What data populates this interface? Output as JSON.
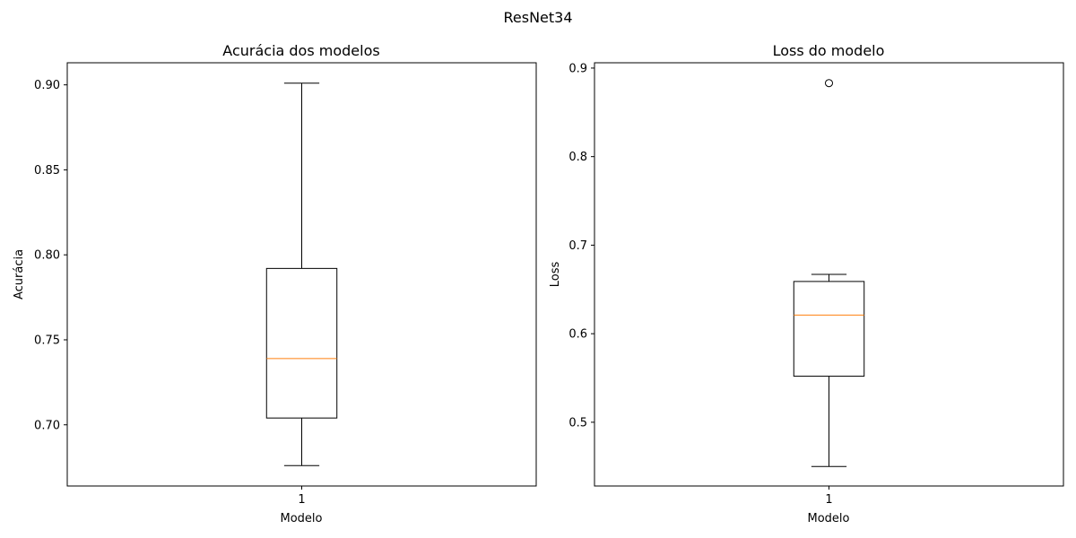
{
  "figure": {
    "suptitle": "ResNet34"
  },
  "chart_data": [
    {
      "type": "boxplot",
      "title": "Acurácia dos modelos",
      "xlabel": "Modelo",
      "ylabel": "Acurácia",
      "categories": [
        "1"
      ],
      "xlim": [
        0.5,
        1.5
      ],
      "ylim": [
        0.664,
        0.913
      ],
      "yticks": [
        0.7,
        0.75,
        0.8,
        0.85,
        0.9
      ],
      "ytick_labels": [
        "0.70",
        "0.75",
        "0.80",
        "0.85",
        "0.90"
      ],
      "boxes": [
        {
          "whisker_low": 0.676,
          "q1": 0.704,
          "median": 0.739,
          "q3": 0.792,
          "whisker_high": 0.901,
          "fliers": []
        }
      ],
      "colors": {
        "box": "#000000",
        "median": "#ff7f0e"
      },
      "grid": false
    },
    {
      "type": "boxplot",
      "title": "Loss do modelo",
      "xlabel": "Modelo",
      "ylabel": "Loss",
      "categories": [
        "1"
      ],
      "xlim": [
        0.5,
        1.5
      ],
      "ylim": [
        0.428,
        0.906
      ],
      "yticks": [
        0.5,
        0.6,
        0.7,
        0.8,
        0.9
      ],
      "ytick_labels": [
        "0.5",
        "0.6",
        "0.7",
        "0.8",
        "0.9"
      ],
      "boxes": [
        {
          "whisker_low": 0.45,
          "q1": 0.552,
          "median": 0.621,
          "q3": 0.659,
          "whisker_high": 0.667,
          "fliers": [
            0.883
          ]
        }
      ],
      "colors": {
        "box": "#000000",
        "median": "#ff7f0e"
      },
      "grid": false
    }
  ]
}
